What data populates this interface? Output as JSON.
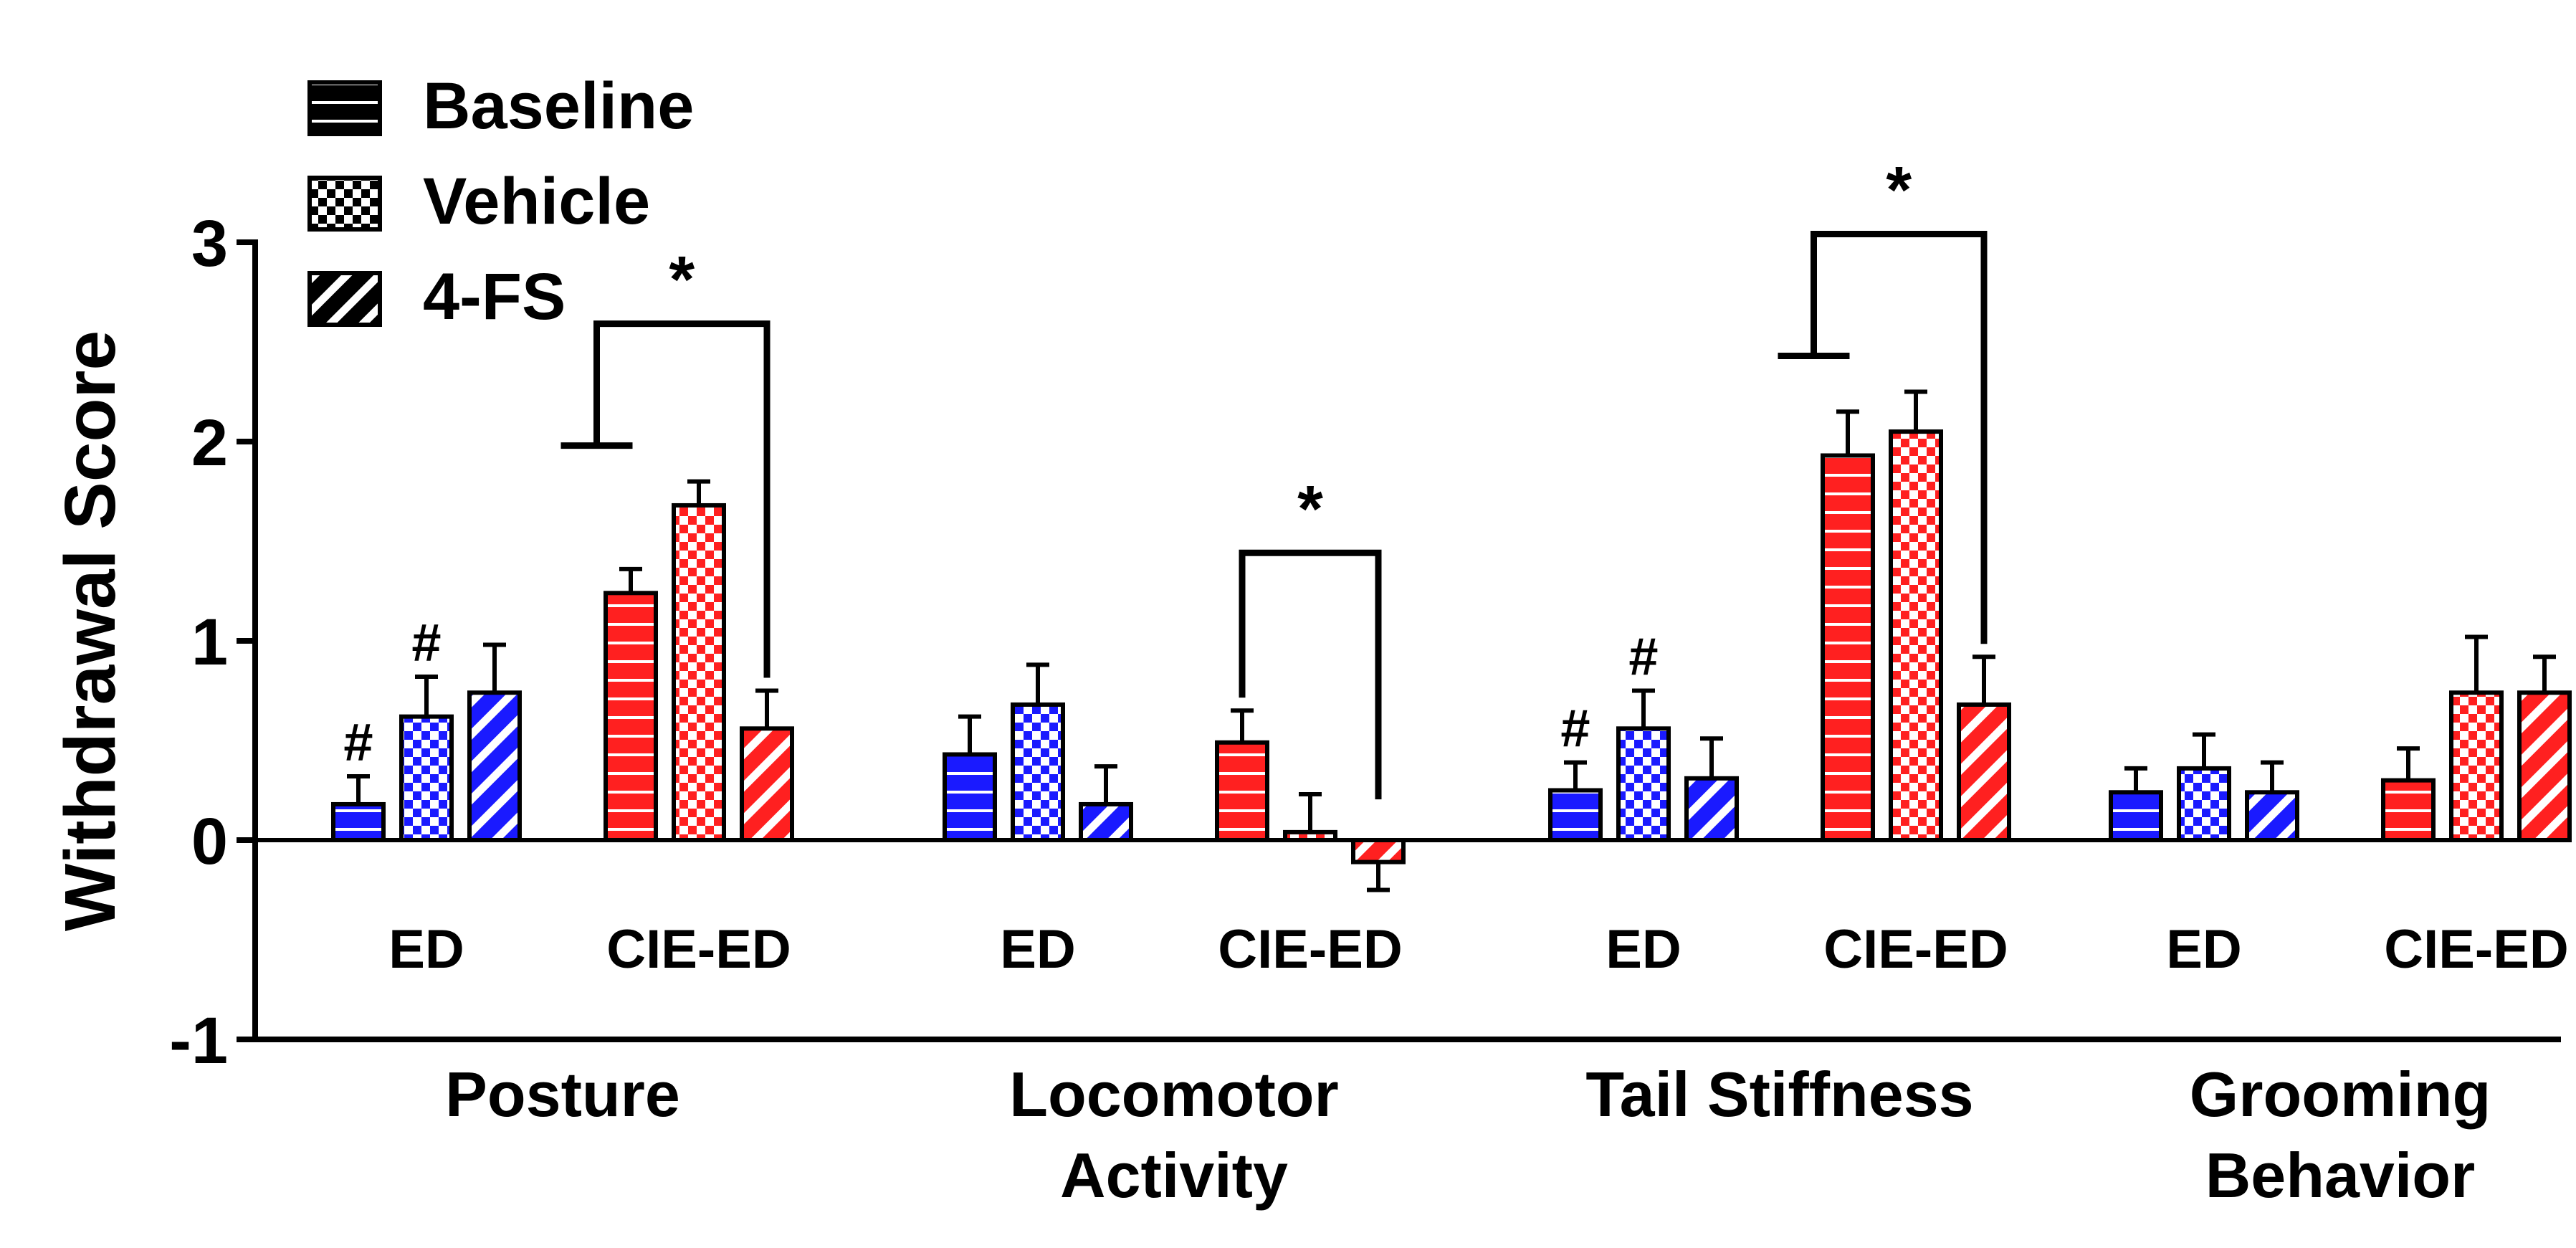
{
  "chart_data": {
    "type": "bar",
    "ylabel": "Withdrawal Score",
    "ylim": [
      -1,
      3
    ],
    "yticks": [
      -1,
      0,
      1,
      2,
      3
    ],
    "ytick_labels": [
      "-1",
      "0",
      "1",
      "2",
      "3"
    ],
    "series": [
      {
        "name": "Baseline",
        "pattern": "horizontal-stripes"
      },
      {
        "name": "Vehicle",
        "pattern": "checkerboard"
      },
      {
        "name": "4-FS",
        "pattern": "diagonal-stripes"
      }
    ],
    "legend": {
      "position": "top-left"
    },
    "colors": {
      "ED": "#1a1aff",
      "CIE-ED": "#ff2020"
    },
    "measures": [
      {
        "label": "Posture",
        "groups": [
          {
            "name": "ED",
            "values": [
              0.18,
              0.62,
              0.74
            ],
            "errors": [
              0.14,
              0.2,
              0.24
            ],
            "marks": [
              "#",
              "#",
              ""
            ]
          },
          {
            "name": "CIE-ED",
            "values": [
              1.24,
              1.68,
              0.56
            ],
            "errors": [
              0.12,
              0.12,
              0.19
            ],
            "marks": [
              "",
              "",
              ""
            ]
          }
        ],
        "significance": {
          "label": "*",
          "group": "CIE-ED",
          "from": [
            0,
            1
          ],
          "to": 2
        }
      },
      {
        "label": "Locomotor Activity",
        "groups": [
          {
            "name": "ED",
            "values": [
              0.43,
              0.68,
              0.18
            ],
            "errors": [
              0.19,
              0.2,
              0.19
            ],
            "marks": [
              "",
              "",
              ""
            ]
          },
          {
            "name": "CIE-ED",
            "values": [
              0.49,
              0.04,
              -0.11
            ],
            "errors": [
              0.16,
              0.19,
              0.14
            ],
            "marks": [
              "",
              "",
              ""
            ]
          }
        ],
        "significance": {
          "label": "*",
          "group": "CIE-ED",
          "from": [
            0
          ],
          "to": 2
        }
      },
      {
        "label": "Tail Stiffness",
        "groups": [
          {
            "name": "ED",
            "values": [
              0.25,
              0.56,
              0.31
            ],
            "errors": [
              0.14,
              0.19,
              0.2
            ],
            "marks": [
              "#",
              "#",
              ""
            ]
          },
          {
            "name": "CIE-ED",
            "values": [
              1.93,
              2.05,
              0.68
            ],
            "errors": [
              0.22,
              0.2,
              0.24
            ],
            "marks": [
              "",
              "",
              ""
            ]
          }
        ],
        "significance": {
          "label": "*",
          "group": "CIE-ED",
          "from": [
            0,
            1
          ],
          "to": 2
        }
      },
      {
        "label": "Grooming Behavior",
        "groups": [
          {
            "name": "ED",
            "values": [
              0.24,
              0.36,
              0.24
            ],
            "errors": [
              0.12,
              0.17,
              0.15
            ],
            "marks": [
              "",
              "",
              ""
            ]
          },
          {
            "name": "CIE-ED",
            "values": [
              0.3,
              0.74,
              0.74
            ],
            "errors": [
              0.16,
              0.28,
              0.18
            ],
            "marks": [
              "",
              "",
              ""
            ]
          }
        ],
        "significance": null
      }
    ]
  }
}
